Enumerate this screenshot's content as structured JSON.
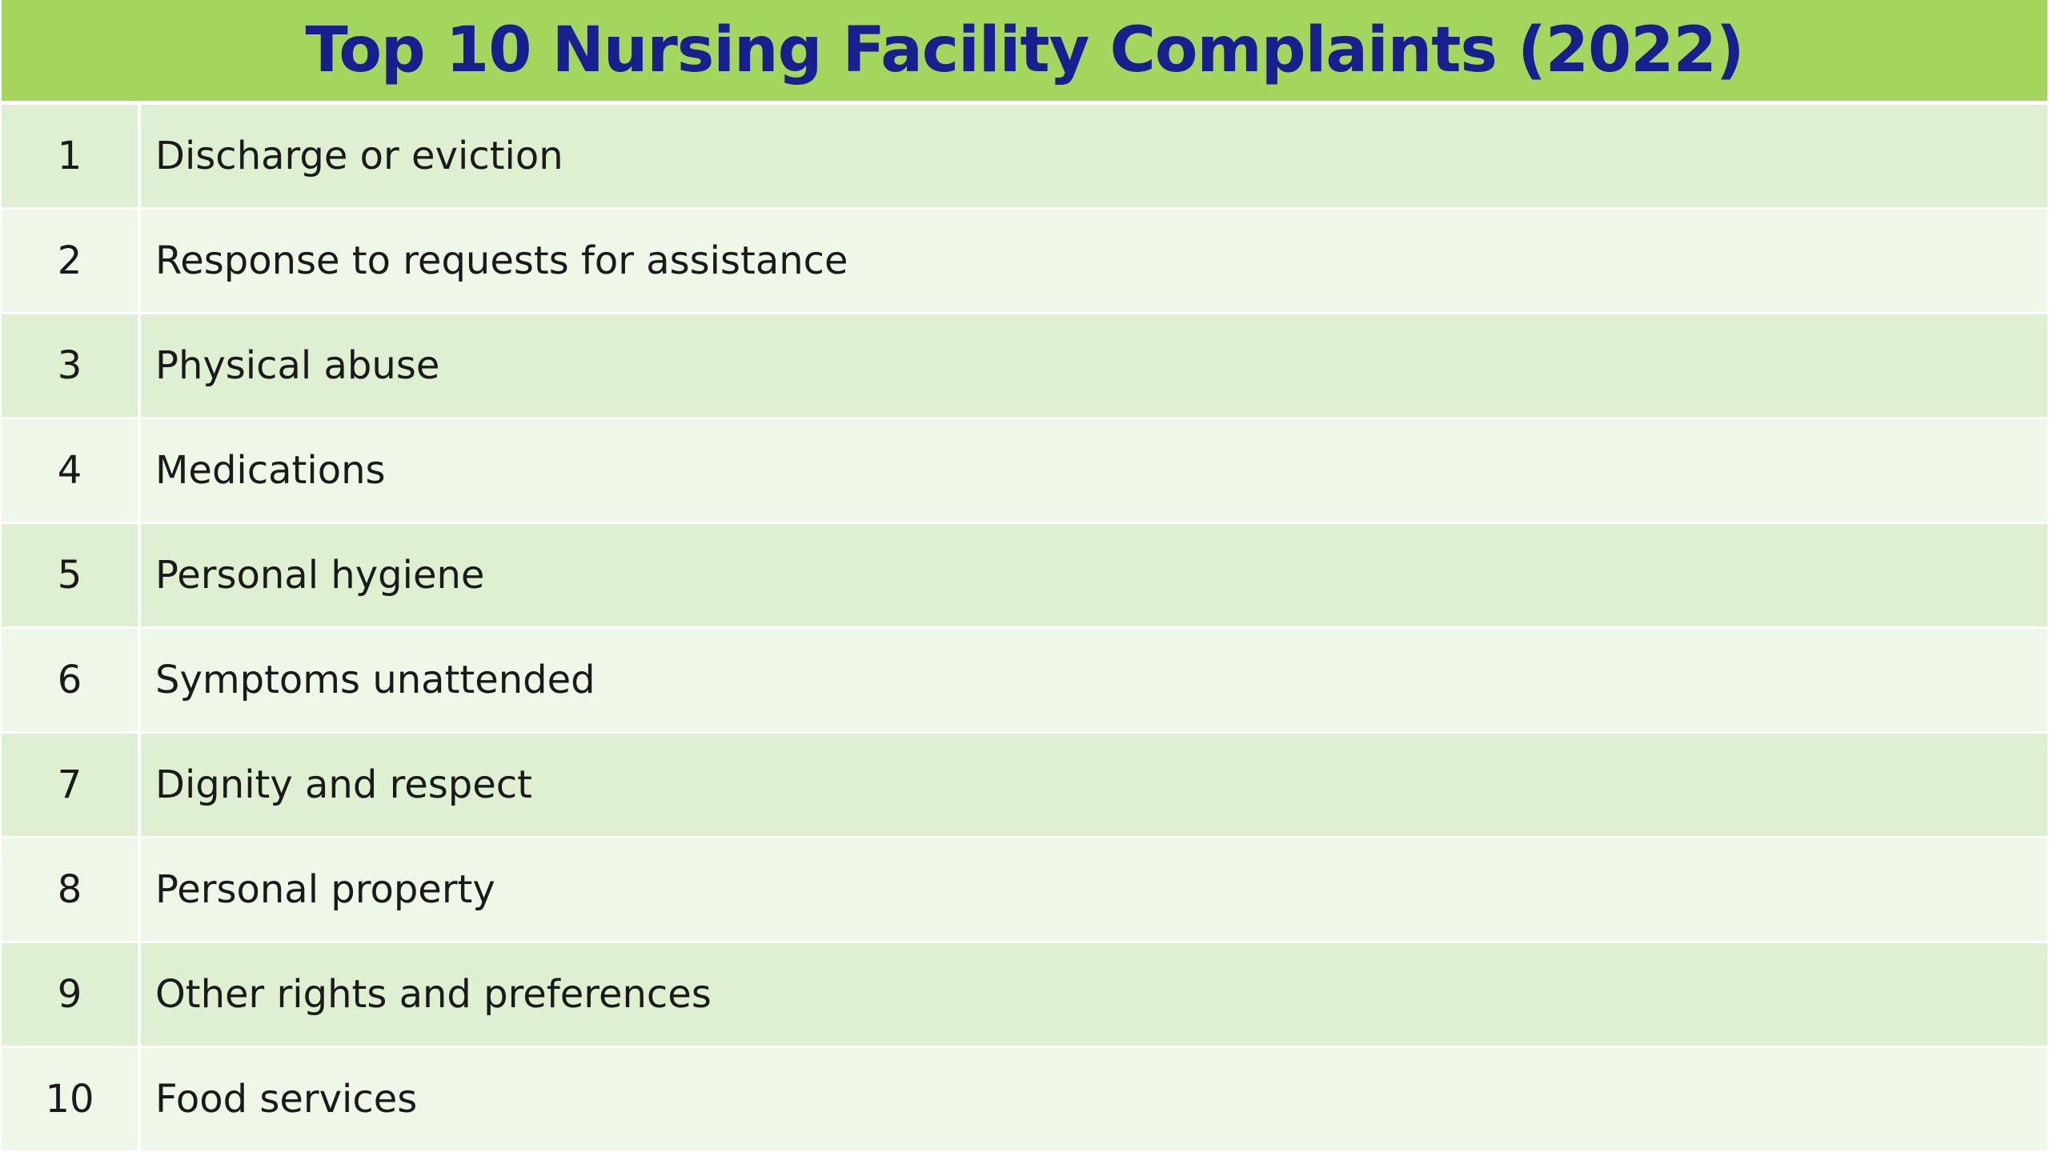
{
  "title": "Top 10 Nursing Facility Complaints (2022)",
  "colors": {
    "header_background": "#a4d65e",
    "title_text": "#1a1f8f",
    "row_odd": "#dfefd2",
    "row_even": "#eff7e9",
    "body_text": "#1a1a1a"
  },
  "rows": [
    {
      "rank": "1",
      "complaint": "Discharge or eviction"
    },
    {
      "rank": "2",
      "complaint": "Response to requests for assistance"
    },
    {
      "rank": "3",
      "complaint": "Physical abuse"
    },
    {
      "rank": "4",
      "complaint": "Medications"
    },
    {
      "rank": "5",
      "complaint": "Personal hygiene"
    },
    {
      "rank": "6",
      "complaint": "Symptoms unattended"
    },
    {
      "rank": "7",
      "complaint": "Dignity and respect"
    },
    {
      "rank": "8",
      "complaint": "Personal property"
    },
    {
      "rank": "9",
      "complaint": "Other rights and preferences"
    },
    {
      "rank": "10",
      "complaint": "Food services"
    }
  ]
}
